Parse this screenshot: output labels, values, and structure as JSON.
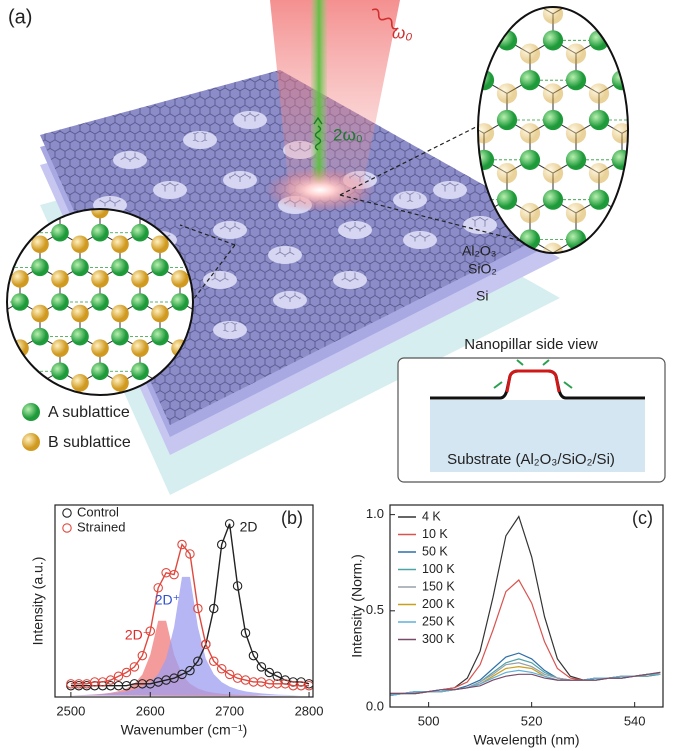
{
  "figure": {
    "panel_a": {
      "label": "(a)",
      "omega": "ω₀",
      "second_harmonic": "2ω₀",
      "layers": [
        "Al₂O₃",
        "SiO₂",
        "Si"
      ],
      "legend": [
        "A sublattice",
        "B sublattice"
      ],
      "inset_title": "Nanopillar side view",
      "inset_substrate": "Substrate (Al₂O₃/SiO₂/Si)"
    }
  },
  "chart_data": [
    {
      "type": "scatter",
      "panel_label": "(b)",
      "xlabel": "Wavenumber (cm⁻¹)",
      "ylabel": "Intensity (a.u.)",
      "peak_label": "2D",
      "x": [
        2500,
        2510,
        2520,
        2530,
        2540,
        2550,
        2560,
        2570,
        2580,
        2590,
        2600,
        2610,
        2620,
        2630,
        2640,
        2650,
        2660,
        2670,
        2680,
        2690,
        2700,
        2710,
        2720,
        2730,
        2740,
        2750,
        2760,
        2770,
        2780,
        2790,
        2800
      ],
      "xlim": [
        2480,
        2805
      ],
      "xticks": [
        2500,
        2600,
        2700,
        2800
      ],
      "ylim": [
        0,
        1.02
      ],
      "series": [
        {
          "name": "Control",
          "color": "#222222",
          "line": true,
          "values": [
            0.06,
            0.06,
            0.06,
            0.06,
            0.06,
            0.06,
            0.06,
            0.06,
            0.07,
            0.07,
            0.07,
            0.08,
            0.09,
            0.1,
            0.12,
            0.14,
            0.19,
            0.28,
            0.47,
            0.81,
            0.92,
            0.59,
            0.34,
            0.22,
            0.16,
            0.13,
            0.11,
            0.09,
            0.08,
            0.08,
            0.07
          ]
        },
        {
          "name": "Strained",
          "color": "#e0483e",
          "line": true,
          "values": [
            0.07,
            0.07,
            0.07,
            0.08,
            0.08,
            0.09,
            0.11,
            0.13,
            0.16,
            0.22,
            0.35,
            0.58,
            0.66,
            0.65,
            0.81,
            0.76,
            0.47,
            0.28,
            0.19,
            0.15,
            0.12,
            0.1,
            0.09,
            0.08,
            0.08,
            0.07,
            0.07,
            0.07,
            0.06,
            0.06,
            0.06
          ]
        }
      ],
      "areas": [
        {
          "label": "2D⁻",
          "color": "#f07a7a",
          "text_color": "#e02a2a",
          "values": [
            0.008,
            0.009,
            0.011,
            0.014,
            0.017,
            0.023,
            0.031,
            0.045,
            0.07,
            0.119,
            0.225,
            0.405,
            0.405,
            0.225,
            0.119,
            0.07,
            0.045,
            0.031,
            0.023,
            0.017,
            0.014,
            0.011,
            0.009,
            0.008,
            0.006,
            0.005,
            0.005,
            0.004,
            0.004,
            0.003,
            0.003
          ]
        },
        {
          "label": "2D⁺",
          "color": "#9e9ef0",
          "text_color": "#3050d0",
          "values": [
            0.008,
            0.01,
            0.011,
            0.013,
            0.016,
            0.019,
            0.024,
            0.03,
            0.04,
            0.055,
            0.079,
            0.121,
            0.203,
            0.372,
            0.638,
            0.638,
            0.372,
            0.203,
            0.121,
            0.079,
            0.055,
            0.04,
            0.03,
            0.024,
            0.019,
            0.016,
            0.013,
            0.011,
            0.01,
            0.008,
            0.008
          ]
        }
      ]
    },
    {
      "type": "line",
      "panel_label": "(c)",
      "xlabel": "Wavelength (nm)",
      "ylabel": "Intensity (Norm.)",
      "x": [
        492.5,
        495,
        497.5,
        500,
        502.5,
        505,
        507.5,
        510,
        512.5,
        515,
        517.5,
        520,
        522.5,
        525,
        527.5,
        530,
        532.5,
        535,
        537.5,
        540,
        542.5,
        545
      ],
      "xlim": [
        492.5,
        545.5
      ],
      "xticks": [
        500,
        520,
        540
      ],
      "ylim": [
        0,
        1.05
      ],
      "yticks": [
        {
          "value": 0,
          "label": "0.0"
        },
        0.5,
        {
          "value": 1,
          "label": "1.0"
        }
      ],
      "series": [
        {
          "name": "4 K",
          "color": "#333333",
          "values": [
            0.07,
            0.07,
            0.08,
            0.08,
            0.09,
            0.1,
            0.15,
            0.29,
            0.57,
            0.89,
            0.99,
            0.78,
            0.47,
            0.25,
            0.16,
            0.14,
            0.15,
            0.15,
            0.16,
            0.16,
            0.17,
            0.17
          ]
        },
        {
          "name": "10 K",
          "color": "#d9534f",
          "values": [
            0.06,
            0.07,
            0.07,
            0.08,
            0.09,
            0.1,
            0.13,
            0.22,
            0.4,
            0.6,
            0.66,
            0.54,
            0.34,
            0.2,
            0.15,
            0.14,
            0.14,
            0.15,
            0.15,
            0.16,
            0.16,
            0.17
          ]
        },
        {
          "name": "50 K",
          "color": "#2f6fa8",
          "values": [
            0.07,
            0.07,
            0.07,
            0.08,
            0.08,
            0.09,
            0.11,
            0.14,
            0.2,
            0.26,
            0.28,
            0.25,
            0.19,
            0.15,
            0.14,
            0.14,
            0.15,
            0.15,
            0.15,
            0.16,
            0.17,
            0.17
          ]
        },
        {
          "name": "100 K",
          "color": "#4fa3a8",
          "values": [
            0.06,
            0.07,
            0.08,
            0.08,
            0.08,
            0.09,
            0.1,
            0.13,
            0.18,
            0.23,
            0.25,
            0.23,
            0.18,
            0.15,
            0.14,
            0.14,
            0.14,
            0.15,
            0.16,
            0.16,
            0.16,
            0.17
          ]
        },
        {
          "name": "150 K",
          "color": "#9aa0a8",
          "values": [
            0.06,
            0.07,
            0.07,
            0.08,
            0.09,
            0.09,
            0.1,
            0.13,
            0.17,
            0.22,
            0.23,
            0.21,
            0.17,
            0.15,
            0.14,
            0.14,
            0.15,
            0.15,
            0.16,
            0.16,
            0.17,
            0.18
          ]
        },
        {
          "name": "200 K",
          "color": "#c8a020",
          "values": [
            0.07,
            0.07,
            0.07,
            0.08,
            0.08,
            0.09,
            0.1,
            0.12,
            0.16,
            0.2,
            0.21,
            0.2,
            0.16,
            0.14,
            0.14,
            0.14,
            0.14,
            0.15,
            0.16,
            0.16,
            0.17,
            0.17
          ]
        },
        {
          "name": "250 K",
          "color": "#5fb0d8",
          "values": [
            0.06,
            0.07,
            0.08,
            0.08,
            0.08,
            0.09,
            0.1,
            0.12,
            0.15,
            0.18,
            0.19,
            0.18,
            0.16,
            0.14,
            0.14,
            0.14,
            0.15,
            0.15,
            0.16,
            0.16,
            0.17,
            0.17
          ]
        },
        {
          "name": "300 K",
          "color": "#7a4a6a",
          "values": [
            0.07,
            0.07,
            0.07,
            0.08,
            0.09,
            0.09,
            0.1,
            0.11,
            0.14,
            0.16,
            0.17,
            0.17,
            0.15,
            0.14,
            0.14,
            0.14,
            0.14,
            0.15,
            0.15,
            0.16,
            0.17,
            0.18
          ]
        }
      ]
    }
  ]
}
